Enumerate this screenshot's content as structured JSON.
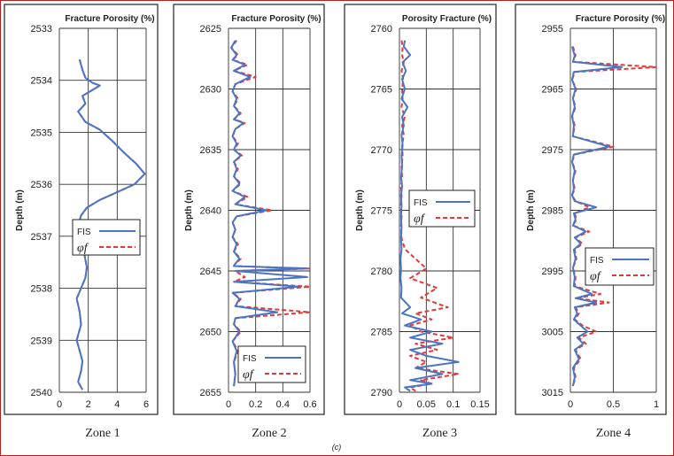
{
  "caption": "(c)",
  "colors": {
    "fis": "#4a74c4",
    "phi": "#e23a3a",
    "border": "#b32020"
  },
  "chart_data": [
    {
      "type": "line",
      "zone_label": "Zone 1",
      "title": "Fracture Porosity (%)",
      "ylabel": "Depth (m)",
      "xlabel": "",
      "xlim": [
        0,
        6
      ],
      "xticks": [
        0,
        2,
        4,
        6
      ],
      "xtick_labels": [
        "0",
        "2",
        "4",
        "6"
      ],
      "ylim": [
        2533,
        2540
      ],
      "yticks": [
        2533,
        2534,
        2535,
        2536,
        2537,
        2538,
        2539,
        2540
      ],
      "y_inverted": true,
      "grid": true,
      "legend": {
        "entries": [
          "FIS",
          "φf"
        ],
        "placement": "middle-left"
      },
      "series": [
        {
          "name": "FIS",
          "style": "solid",
          "x": [
            1.4,
            1.6,
            1.8,
            2.3,
            2.8,
            2.2,
            1.6,
            1.8,
            1.3,
            1.8,
            2.8,
            3.6,
            4.5,
            5.3,
            5.9,
            5.2,
            4.0,
            2.8,
            1.9,
            1.5,
            1.3,
            1.4,
            1.7,
            1.9,
            1.8,
            1.5,
            1.2,
            1.4,
            1.5,
            1.3,
            1.2,
            1.4,
            1.6,
            1.5,
            1.3,
            1.6
          ],
          "y": [
            2533.6,
            2533.8,
            2533.95,
            2534.05,
            2534.1,
            2534.2,
            2534.3,
            2534.45,
            2534.6,
            2534.8,
            2534.95,
            2535.15,
            2535.4,
            2535.6,
            2535.8,
            2536.0,
            2536.15,
            2536.3,
            2536.45,
            2536.6,
            2536.8,
            2537.0,
            2537.3,
            2537.6,
            2537.8,
            2538.0,
            2538.2,
            2538.45,
            2538.7,
            2538.9,
            2539.0,
            2539.2,
            2539.4,
            2539.6,
            2539.8,
            2539.95
          ]
        },
        {
          "name": "φf",
          "style": "dashed",
          "x": [
            1.4,
            1.6,
            1.8,
            2.3,
            2.8,
            2.2,
            1.6,
            1.8,
            1.3,
            1.8,
            2.8,
            3.6,
            4.5,
            5.3,
            5.9,
            5.2,
            4.0,
            2.8,
            1.9,
            1.5,
            1.3,
            1.4,
            1.7,
            1.9,
            1.8,
            1.5,
            1.2,
            1.4,
            1.5,
            1.3,
            1.2,
            1.4,
            1.6,
            1.5,
            1.3,
            1.6
          ],
          "y": [
            2533.6,
            2533.8,
            2533.95,
            2534.05,
            2534.1,
            2534.2,
            2534.3,
            2534.45,
            2534.6,
            2534.8,
            2534.95,
            2535.15,
            2535.4,
            2535.6,
            2535.8,
            2536.0,
            2536.15,
            2536.3,
            2536.45,
            2536.6,
            2536.8,
            2537.0,
            2537.3,
            2537.6,
            2537.8,
            2538.0,
            2538.2,
            2538.45,
            2538.7,
            2538.9,
            2539.0,
            2539.2,
            2539.4,
            2539.6,
            2539.8,
            2539.95
          ]
        }
      ]
    },
    {
      "type": "line",
      "zone_label": "Zone 2",
      "title": "Fracture Porosity (%)",
      "ylabel": "Depth (m)",
      "xlabel": "",
      "xlim": [
        0,
        0.6
      ],
      "xticks": [
        0,
        0.2,
        0.4,
        0.6
      ],
      "xtick_labels": [
        "0",
        "0.2",
        "0.4",
        "0.6"
      ],
      "ylim": [
        2625,
        2655
      ],
      "yticks": [
        2625,
        2630,
        2635,
        2640,
        2645,
        2650,
        2655
      ],
      "y_inverted": true,
      "grid": true,
      "legend": {
        "entries": [
          "FIS",
          "φf"
        ],
        "placement": "bottom-right"
      },
      "series": [
        {
          "name": "FIS",
          "style": "solid",
          "x": [
            0.05,
            0.02,
            0.06,
            0.03,
            0.12,
            0.04,
            0.16,
            0.05,
            0.03,
            0.06,
            0.04,
            0.08,
            0.04,
            0.11,
            0.05,
            0.03,
            0.06,
            0.04,
            0.09,
            0.04,
            0.06,
            0.04,
            0.08,
            0.03,
            0.12,
            0.05,
            0.28,
            0.06,
            0.03,
            0.05,
            0.03,
            0.06,
            0.04,
            0.08,
            0.05,
            0.04,
            0.58,
            0.05,
            0.58,
            0.04,
            0.52,
            0.03,
            0.08,
            0.05,
            0.36,
            0.05,
            0.04,
            0.08,
            0.03,
            0.06,
            0.04,
            0.05,
            0.04
          ],
          "y": [
            2626,
            2626.6,
            2627.2,
            2627.6,
            2628.0,
            2628.5,
            2629.0,
            2629.6,
            2630.2,
            2630.8,
            2631.4,
            2632.0,
            2632.5,
            2632.8,
            2633.3,
            2633.9,
            2634.5,
            2635.0,
            2635.5,
            2636.0,
            2636.6,
            2637.2,
            2637.8,
            2638.4,
            2638.9,
            2639.5,
            2640.0,
            2640.5,
            2641.0,
            2641.6,
            2642.2,
            2642.8,
            2643.4,
            2644.0,
            2644.4,
            2644.6,
            2644.8,
            2645.0,
            2645.5,
            2645.9,
            2646.3,
            2646.8,
            2647.3,
            2647.9,
            2648.4,
            2648.9,
            2649.4,
            2650.0,
            2650.8,
            2651.6,
            2652.5,
            2653.5,
            2654.5
          ]
        },
        {
          "name": "φf",
          "style": "dashed",
          "x": [
            0.06,
            0.02,
            0.07,
            0.03,
            0.14,
            0.04,
            0.2,
            0.05,
            0.03,
            0.07,
            0.04,
            0.09,
            0.04,
            0.12,
            0.05,
            0.03,
            0.07,
            0.04,
            0.1,
            0.04,
            0.07,
            0.04,
            0.09,
            0.03,
            0.14,
            0.05,
            0.32,
            0.06,
            0.03,
            0.05,
            0.03,
            0.07,
            0.04,
            0.09,
            0.05,
            0.04,
            0.6,
            0.05,
            0.12,
            0.04,
            0.6,
            0.03,
            0.09,
            0.05,
            0.6,
            0.05,
            0.04,
            0.09,
            0.03,
            0.07,
            0.04,
            0.05,
            0.04
          ],
          "y": [
            2626,
            2626.6,
            2627.2,
            2627.6,
            2628.0,
            2628.5,
            2629.0,
            2629.6,
            2630.2,
            2630.8,
            2631.4,
            2632.0,
            2632.5,
            2632.8,
            2633.3,
            2633.9,
            2634.5,
            2635.0,
            2635.5,
            2636.0,
            2636.6,
            2637.2,
            2637.8,
            2638.4,
            2638.9,
            2639.5,
            2640.0,
            2640.5,
            2641.0,
            2641.6,
            2642.2,
            2642.8,
            2643.4,
            2644.0,
            2644.4,
            2644.6,
            2644.8,
            2645.0,
            2645.5,
            2645.9,
            2646.3,
            2646.8,
            2647.3,
            2647.9,
            2648.4,
            2648.9,
            2649.4,
            2650.0,
            2650.8,
            2651.6,
            2652.5,
            2653.5,
            2654.5
          ]
        }
      ]
    },
    {
      "type": "line",
      "zone_label": "Zone 3",
      "title": "Porosity Fracture (%)",
      "ylabel": "Depth (m)",
      "xlabel": "",
      "xlim": [
        0,
        0.15
      ],
      "xticks": [
        0,
        0.05,
        0.1,
        0.15
      ],
      "xtick_labels": [
        "0",
        "0.05",
        "0.1",
        "0.15"
      ],
      "ylim": [
        2760,
        2790
      ],
      "yticks": [
        2760,
        2765,
        2770,
        2775,
        2780,
        2785,
        2790
      ],
      "y_inverted": true,
      "grid": true,
      "legend": {
        "entries": [
          "FIS",
          "φf"
        ],
        "placement": "upper-middle"
      },
      "series": [
        {
          "name": "FIS",
          "style": "solid",
          "x": [
            0.01,
            0.008,
            0.02,
            0.006,
            0.012,
            0.005,
            0.01,
            0.004,
            0.015,
            0.005,
            0.008,
            0.004,
            0.006,
            0.004,
            0.005,
            0.003,
            0.005,
            0.003,
            0.004,
            0.003,
            0.004,
            0.003,
            0.004,
            0.002,
            0.003,
            0.002,
            0.004,
            0.003,
            0.02,
            0.005,
            0.04,
            0.01,
            0.06,
            0.02,
            0.08,
            0.02,
            0.05,
            0.11,
            0.03,
            0.08,
            0.02,
            0.06,
            0.01,
            0.02
          ],
          "y": [
            2761,
            2761.5,
            2762.2,
            2762.8,
            2763.5,
            2764.2,
            2765,
            2765.8,
            2766.5,
            2767.3,
            2768.0,
            2768.8,
            2769.6,
            2770.5,
            2771.4,
            2772.3,
            2773.0,
            2773.8,
            2774.6,
            2775.5,
            2776.4,
            2777.3,
            2778.2,
            2779.0,
            2779.8,
            2780.6,
            2781.4,
            2782.2,
            2783.0,
            2783.5,
            2784.0,
            2784.5,
            2785.0,
            2785.5,
            2786.0,
            2786.5,
            2787.0,
            2787.5,
            2788.0,
            2788.5,
            2789.0,
            2789.3,
            2789.6,
            2789.9
          ]
        },
        {
          "name": "φf",
          "style": "dashed",
          "x": [
            0.004,
            0.006,
            0.005,
            0.008,
            0.004,
            0.007,
            0.005,
            0.006,
            0.004,
            0.01,
            0.005,
            0.008,
            0.005,
            0.006,
            0.004,
            0.005,
            0.003,
            0.004,
            0.003,
            0.004,
            0.003,
            0.004,
            0.01,
            0.03,
            0.05,
            0.02,
            0.07,
            0.04,
            0.09,
            0.03,
            0.06,
            0.02,
            0.04,
            0.1,
            0.03,
            0.07,
            0.02,
            0.05,
            0.03,
            0.11,
            0.04,
            0.06,
            0.02,
            0.03
          ],
          "y": [
            2761,
            2761.5,
            2762.2,
            2762.8,
            2763.5,
            2764.2,
            2765,
            2765.8,
            2766.5,
            2767.3,
            2768.0,
            2768.8,
            2769.6,
            2770.5,
            2771.4,
            2772.3,
            2773.0,
            2773.8,
            2774.6,
            2775.5,
            2776.4,
            2777.3,
            2778.2,
            2779.0,
            2779.8,
            2780.6,
            2781.4,
            2782.2,
            2783.0,
            2783.5,
            2784.0,
            2784.5,
            2785.0,
            2785.5,
            2786.0,
            2786.5,
            2787.0,
            2787.5,
            2788.0,
            2788.5,
            2789.0,
            2789.3,
            2789.6,
            2789.9
          ]
        }
      ]
    },
    {
      "type": "line",
      "zone_label": "Zone 4",
      "title": "Fracture Porosity (%)",
      "ylabel": "Depth (m)",
      "xlabel": "",
      "xlim": [
        0,
        1
      ],
      "xticks": [
        0,
        0.5,
        1
      ],
      "xtick_labels": [
        "0",
        "0.5",
        "1"
      ],
      "ylim": [
        2955,
        3015
      ],
      "yticks": [
        2955,
        2965,
        2975,
        2985,
        2995,
        3005,
        3015
      ],
      "y_inverted": true,
      "grid": true,
      "legend": {
        "entries": [
          "FIS",
          "φf"
        ],
        "placement": "middle-right"
      },
      "series": [
        {
          "name": "FIS",
          "style": "solid",
          "x": [
            0.02,
            0.05,
            0.03,
            0.6,
            0.04,
            0.02,
            0.06,
            0.03,
            0.05,
            0.02,
            0.04,
            0.03,
            0.45,
            0.04,
            0.02,
            0.05,
            0.03,
            0.04,
            0.02,
            0.05,
            0.3,
            0.04,
            0.06,
            0.03,
            0.18,
            0.05,
            0.12,
            0.04,
            0.06,
            0.03,
            0.05,
            0.04,
            0.25,
            0.06,
            0.3,
            0.05,
            0.08,
            0.04,
            0.12,
            0.2,
            0.08,
            0.15,
            0.05,
            0.1,
            0.03,
            0.05,
            0.03
          ],
          "y": [
            2958,
            2959.5,
            2960.5,
            2961.4,
            2962.2,
            2963.5,
            2965,
            2966.5,
            2968,
            2969.5,
            2971,
            2972.8,
            2974.5,
            2975.8,
            2977,
            2978.5,
            2980,
            2981.5,
            2982.5,
            2983.5,
            2984.5,
            2985.5,
            2986.5,
            2987.5,
            2988.5,
            2989.5,
            2990.5,
            2991.5,
            2993,
            2994.5,
            2996,
            2997.5,
            2998.8,
            2999.5,
            3000.2,
            3001,
            3002,
            3003,
            3004,
            3005,
            3006,
            3007,
            3008,
            3009.5,
            3011,
            3012.5,
            3014
          ]
        },
        {
          "name": "φf",
          "style": "dashed",
          "x": [
            0.03,
            0.06,
            0.03,
            1.0,
            0.05,
            0.02,
            0.07,
            0.03,
            0.06,
            0.02,
            0.05,
            0.03,
            0.5,
            0.05,
            0.02,
            0.06,
            0.03,
            0.05,
            0.02,
            0.06,
            0.22,
            0.05,
            0.07,
            0.03,
            0.22,
            0.06,
            0.14,
            0.05,
            0.07,
            0.03,
            0.06,
            0.05,
            0.35,
            0.07,
            0.45,
            0.06,
            0.1,
            0.05,
            0.14,
            0.3,
            0.1,
            0.18,
            0.06,
            0.12,
            0.04,
            0.06,
            0.03
          ],
          "y": [
            2958,
            2959.5,
            2960.5,
            2961.4,
            2962.2,
            2963.5,
            2965,
            2966.5,
            2968,
            2969.5,
            2971,
            2972.8,
            2974.5,
            2975.8,
            2977,
            2978.5,
            2980,
            2981.5,
            2982.5,
            2983.5,
            2984.5,
            2985.5,
            2986.5,
            2987.5,
            2988.5,
            2989.5,
            2990.5,
            2991.5,
            2993,
            2994.5,
            2996,
            2997.5,
            2998.8,
            2999.5,
            3000.2,
            3001,
            3002,
            3003,
            3004,
            3005,
            3006,
            3007,
            3008,
            3009.5,
            3011,
            3012.5,
            3014
          ]
        }
      ]
    }
  ]
}
